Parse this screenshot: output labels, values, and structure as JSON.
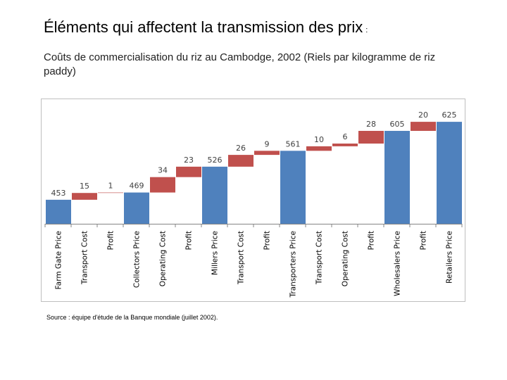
{
  "title": "Éléments qui affectent la transmission des prix",
  "title_suffix": ":",
  "subtitle": "Coûts de commercialisation du riz au Cambodge, 2002 (Riels par kilogramme de riz paddy)",
  "source": "Source : équipe d'étude de la Banque mondiale (juillet 2002).",
  "chart_data": {
    "type": "waterfall",
    "categories": [
      "Farm Gate Price",
      "Transport Cost",
      "Profit",
      "Collectors Price",
      "Operating Cost",
      "Profit",
      "Millers Price",
      "Transport Cost",
      "Profit",
      "Transporters Price",
      "Transport Cost",
      "Operating Cost",
      "Profit",
      "Wholesalers Price",
      "Profit",
      "Retailers Price"
    ],
    "values": [
      453,
      15,
      1,
      469,
      34,
      23,
      526,
      26,
      9,
      561,
      10,
      6,
      28,
      605,
      20,
      625
    ],
    "kinds": [
      "total",
      "delta",
      "delta",
      "total",
      "delta",
      "delta",
      "total",
      "delta",
      "delta",
      "total",
      "delta",
      "delta",
      "delta",
      "total",
      "delta",
      "total"
    ],
    "colors": {
      "total": "#4f81bd",
      "delta": "#c0504d"
    },
    "ylim": [
      400,
      650
    ]
  }
}
